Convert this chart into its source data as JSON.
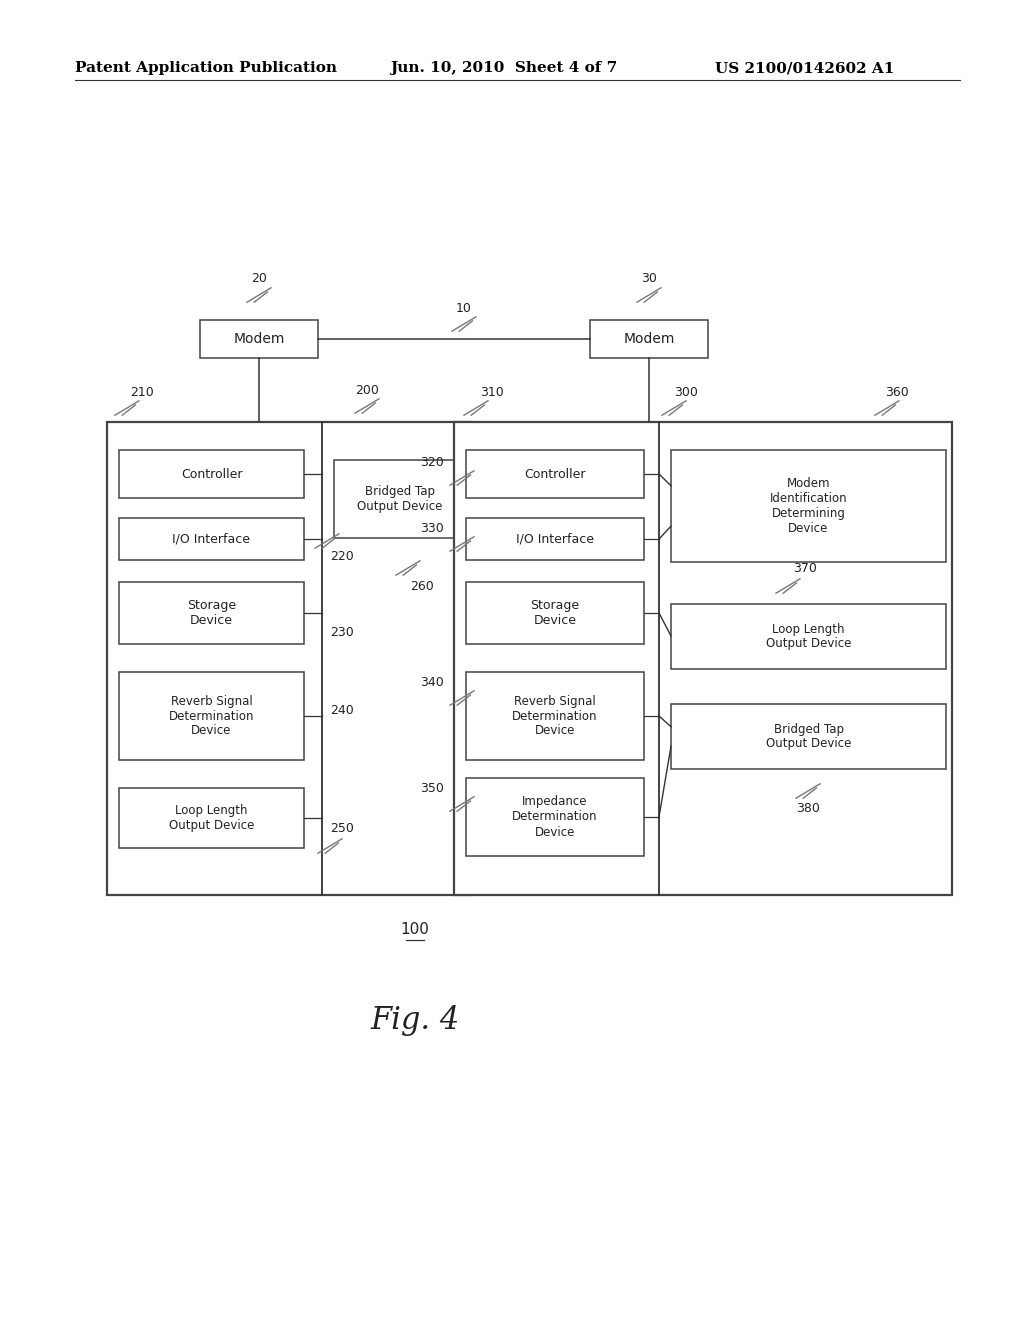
{
  "bg_color": "#ffffff",
  "header_text": "Patent Application Publication",
  "header_date": "Jun. 10, 2010  Sheet 4 of 7",
  "header_patent": "US 2100/0142602 A1",
  "fig_label": "Fig. 4",
  "line_color": "#333333",
  "box_ec": "#444444"
}
